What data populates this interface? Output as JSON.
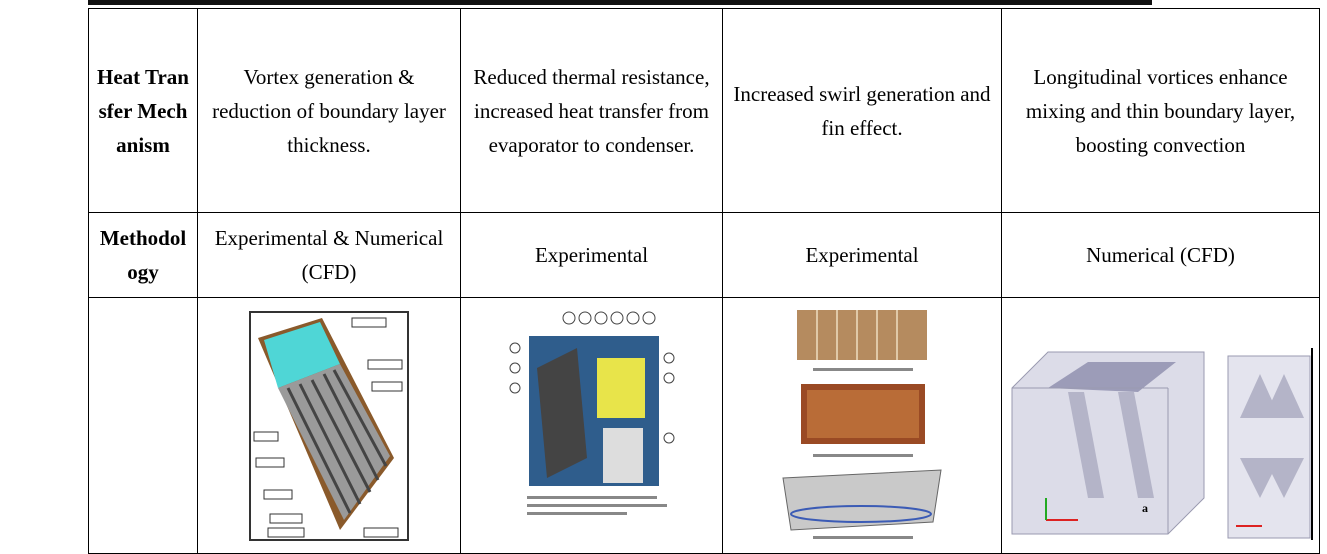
{
  "table": {
    "rows": [
      [
        "Heat Transfer Mechanism",
        "Vortex generation & reduction of boundary layer thickness.",
        "Reduced thermal resistance, increased heat transfer from evaporator to condenser.",
        "Increased swirl generation and fin effect.",
        "Longitudinal vortices enhance mixing and thin boundary layer, boosting convection"
      ],
      [
        "Methodology",
        "Experimental & Numerical (CFD)",
        "Experimental",
        "Experimental",
        "Numerical (CFD)"
      ]
    ]
  }
}
